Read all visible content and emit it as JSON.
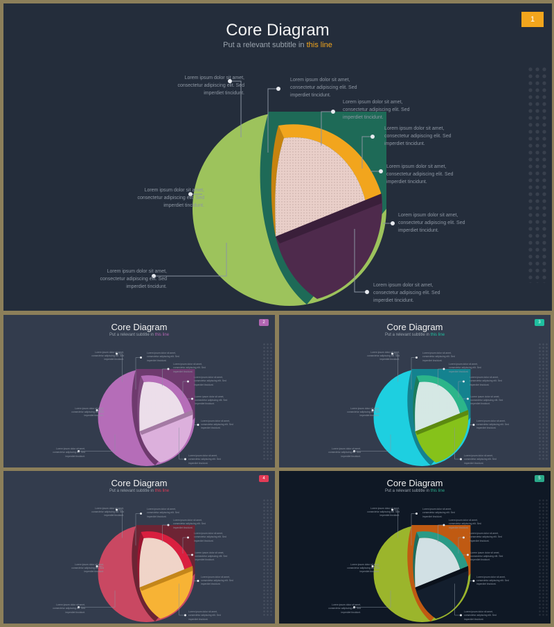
{
  "title": "Core Diagram",
  "subtitle_prefix": "Put a relevant subtitle in ",
  "subtitle_highlight": "this line",
  "caption_lines": [
    "Lorem ipsum dolor sit amet,",
    "consectetur adipiscing elit. Sed",
    "imperdiet tincidunt."
  ],
  "slides": [
    {
      "page": "1",
      "background": "#242d3b",
      "accent": "#f2a51d",
      "crust": "#9dc35c",
      "crust_edge": "#1e6a57",
      "upper": "#f2a51d",
      "upper_edge": "#c6830f",
      "lower": "#4e2a4c",
      "lower_edge": "#3a1f3a",
      "inner": "#e9cfc9"
    },
    {
      "page": "2",
      "background": "#333c4d",
      "accent": "#b366b3",
      "crust": "#b56db8",
      "crust_edge": "#6e3a6e",
      "upper": "#b56db8",
      "upper_edge": "#7f4a7f",
      "lower": "#dcb0dc",
      "lower_edge": "#a47aa4",
      "inner": "#efe2ef"
    },
    {
      "page": "3",
      "background": "#333c4d",
      "accent": "#1fbf9f",
      "crust": "#1ecfe0",
      "crust_edge": "#14828f",
      "upper": "#2bb58a",
      "upper_edge": "#1b7c5c",
      "lower": "#86c21a",
      "lower_edge": "#5c8a10",
      "inner": "#d8ece8"
    },
    {
      "page": "4",
      "background": "#333c4d",
      "accent": "#e23b56",
      "crust": "#c94862",
      "crust_edge": "#6d2434",
      "upper": "#d91f3f",
      "upper_edge": "#9a1530",
      "lower": "#f7b335",
      "lower_edge": "#c4861a",
      "inner": "#f3d8cc"
    },
    {
      "page": "5",
      "background": "#0f1825",
      "accent": "#2aa98a",
      "crust": "#9bb52c",
      "crust_edge": "#c05a12",
      "upper": "#2a9a86",
      "upper_edge": "#1d6d5e",
      "lower": "#131e2d",
      "lower_edge": "#0a111b",
      "inner": "#d4e4e8"
    }
  ]
}
